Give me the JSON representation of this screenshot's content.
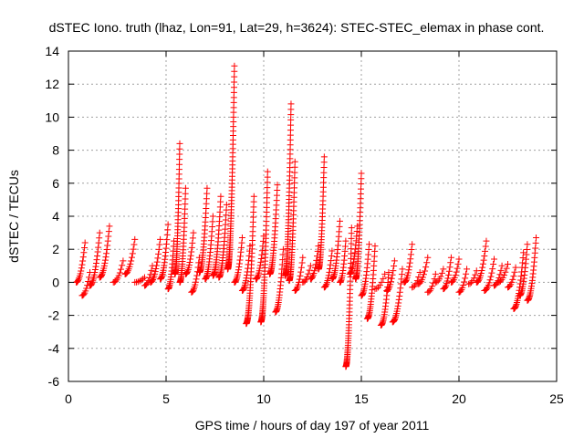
{
  "chart_data": {
    "type": "scatter",
    "title": "dSTEC Iono. truth (lhaz, Lon=91, Lat=29, h=3624): STEC-STEC_elemax in phase cont.",
    "xlabel": "GPS time / hours of day 197 of year 2011",
    "ylabel": "dSTEC  / TECUs",
    "xlim": [
      0,
      25
    ],
    "ylim": [
      -6,
      14
    ],
    "xticks": [
      0,
      5,
      10,
      15,
      20,
      25
    ],
    "yticks": [
      -6,
      -4,
      -2,
      0,
      2,
      4,
      6,
      8,
      10,
      12,
      14
    ],
    "grid": true,
    "marker": "+",
    "marker_color": "#ff0000",
    "arcs": [
      {
        "x_start": 0.4,
        "x_end": 0.85,
        "y_start": 0.0,
        "y_end": 2.4
      },
      {
        "x_start": 0.7,
        "x_end": 1.1,
        "y_start": -0.8,
        "y_end": 0.6
      },
      {
        "x_start": 1.1,
        "x_end": 1.6,
        "y_start": -0.2,
        "y_end": 3.0
      },
      {
        "x_start": 1.6,
        "x_end": 2.1,
        "y_start": 0.3,
        "y_end": 3.4
      },
      {
        "x_start": 2.3,
        "x_end": 2.8,
        "y_start": 0.0,
        "y_end": 1.3
      },
      {
        "x_start": 2.9,
        "x_end": 3.4,
        "y_start": 0.5,
        "y_end": 2.6
      },
      {
        "x_start": 3.4,
        "x_end": 3.9,
        "y_start": 0.0,
        "y_end": 0.3
      },
      {
        "x_start": 3.9,
        "x_end": 4.3,
        "y_start": -0.2,
        "y_end": 1.0
      },
      {
        "x_start": 4.2,
        "x_end": 4.7,
        "y_start": 0.0,
        "y_end": 2.6
      },
      {
        "x_start": 4.7,
        "x_end": 5.1,
        "y_start": 0.2,
        "y_end": 3.5
      },
      {
        "x_start": 5.1,
        "x_end": 5.4,
        "y_start": -0.4,
        "y_end": 2.5
      },
      {
        "x_start": 5.45,
        "x_end": 5.7,
        "y_start": 0.5,
        "y_end": 8.4
      },
      {
        "x_start": 5.7,
        "x_end": 6.0,
        "y_start": 0.0,
        "y_end": 5.7
      },
      {
        "x_start": 6.0,
        "x_end": 6.4,
        "y_start": 0.5,
        "y_end": 3.0
      },
      {
        "x_start": 6.3,
        "x_end": 6.7,
        "y_start": -0.6,
        "y_end": 1.5
      },
      {
        "x_start": 6.7,
        "x_end": 7.1,
        "y_start": 0.6,
        "y_end": 5.7
      },
      {
        "x_start": 7.0,
        "x_end": 7.4,
        "y_start": 0.2,
        "y_end": 4.0
      },
      {
        "x_start": 7.4,
        "x_end": 7.8,
        "y_start": 0.4,
        "y_end": 5.2
      },
      {
        "x_start": 7.7,
        "x_end": 8.1,
        "y_start": 0.3,
        "y_end": 4.7
      },
      {
        "x_start": 8.15,
        "x_end": 8.5,
        "y_start": 0.8,
        "y_end": 13.1
      },
      {
        "x_start": 8.5,
        "x_end": 8.9,
        "y_start": 0.0,
        "y_end": 2.7
      },
      {
        "x_start": 8.9,
        "x_end": 9.3,
        "y_start": -0.5,
        "y_end": 2.2
      },
      {
        "x_start": 9.1,
        "x_end": 9.5,
        "y_start": -2.5,
        "y_end": 5.2
      },
      {
        "x_start": 9.6,
        "x_end": 10.0,
        "y_start": 0.2,
        "y_end": 2.8
      },
      {
        "x_start": 9.85,
        "x_end": 10.2,
        "y_start": -2.4,
        "y_end": 6.7
      },
      {
        "x_start": 10.3,
        "x_end": 10.7,
        "y_start": 0.5,
        "y_end": 5.9
      },
      {
        "x_start": 10.6,
        "x_end": 11.0,
        "y_start": -1.8,
        "y_end": 2.0
      },
      {
        "x_start": 11.1,
        "x_end": 11.4,
        "y_start": 0.4,
        "y_end": 10.8
      },
      {
        "x_start": 11.3,
        "x_end": 11.6,
        "y_start": 0.1,
        "y_end": 7.3
      },
      {
        "x_start": 11.6,
        "x_end": 12.0,
        "y_start": -0.5,
        "y_end": 1.5
      },
      {
        "x_start": 12.0,
        "x_end": 12.4,
        "y_start": 0.0,
        "y_end": 1.0
      },
      {
        "x_start": 12.4,
        "x_end": 12.8,
        "y_start": 0.2,
        "y_end": 2.2
      },
      {
        "x_start": 12.8,
        "x_end": 13.1,
        "y_start": 0.8,
        "y_end": 7.6
      },
      {
        "x_start": 13.1,
        "x_end": 13.5,
        "y_start": -0.3,
        "y_end": 1.9
      },
      {
        "x_start": 13.5,
        "x_end": 13.9,
        "y_start": 0.2,
        "y_end": 3.7
      },
      {
        "x_start": 13.9,
        "x_end": 14.2,
        "y_start": 0.0,
        "y_end": 2.5
      },
      {
        "x_start": 14.2,
        "x_end": 14.5,
        "y_start": -5.1,
        "y_end": 3.3
      },
      {
        "x_start": 14.4,
        "x_end": 14.8,
        "y_start": 0.5,
        "y_end": 3.4
      },
      {
        "x_start": 14.7,
        "x_end": 15.0,
        "y_start": 0.2,
        "y_end": 6.6
      },
      {
        "x_start": 15.0,
        "x_end": 15.4,
        "y_start": -0.8,
        "y_end": 2.3
      },
      {
        "x_start": 15.3,
        "x_end": 15.7,
        "y_start": -2.2,
        "y_end": 2.2
      },
      {
        "x_start": 15.7,
        "x_end": 16.2,
        "y_start": -0.4,
        "y_end": 0.5
      },
      {
        "x_start": 16.0,
        "x_end": 16.4,
        "y_start": -2.6,
        "y_end": 0.6
      },
      {
        "x_start": 16.3,
        "x_end": 16.7,
        "y_start": -0.5,
        "y_end": 1.3
      },
      {
        "x_start": 16.6,
        "x_end": 17.1,
        "y_start": -2.4,
        "y_end": 0.8
      },
      {
        "x_start": 17.2,
        "x_end": 17.6,
        "y_start": 0.0,
        "y_end": 2.3
      },
      {
        "x_start": 17.6,
        "x_end": 18.0,
        "y_start": -0.3,
        "y_end": 0.6
      },
      {
        "x_start": 17.9,
        "x_end": 18.4,
        "y_start": -0.1,
        "y_end": 1.5
      },
      {
        "x_start": 18.4,
        "x_end": 18.8,
        "y_start": -0.6,
        "y_end": 0.5
      },
      {
        "x_start": 18.8,
        "x_end": 19.2,
        "y_start": 0.0,
        "y_end": 0.8
      },
      {
        "x_start": 19.2,
        "x_end": 19.6,
        "y_start": -0.4,
        "y_end": 1.5
      },
      {
        "x_start": 19.6,
        "x_end": 20.0,
        "y_start": 0.0,
        "y_end": 1.4
      },
      {
        "x_start": 20.0,
        "x_end": 20.4,
        "y_start": -0.6,
        "y_end": 0.8
      },
      {
        "x_start": 20.5,
        "x_end": 20.9,
        "y_start": -0.1,
        "y_end": 0.7
      },
      {
        "x_start": 20.9,
        "x_end": 21.4,
        "y_start": 0.0,
        "y_end": 2.5
      },
      {
        "x_start": 21.3,
        "x_end": 21.8,
        "y_start": -0.5,
        "y_end": 1.4
      },
      {
        "x_start": 21.8,
        "x_end": 22.2,
        "y_start": -0.2,
        "y_end": 1.0
      },
      {
        "x_start": 22.0,
        "x_end": 22.5,
        "y_start": 0.0,
        "y_end": 1.1
      },
      {
        "x_start": 22.5,
        "x_end": 22.9,
        "y_start": -0.3,
        "y_end": 0.9
      },
      {
        "x_start": 22.8,
        "x_end": 23.3,
        "y_start": -1.6,
        "y_end": 1.8
      },
      {
        "x_start": 23.1,
        "x_end": 23.5,
        "y_start": -0.8,
        "y_end": 2.3
      },
      {
        "x_start": 23.5,
        "x_end": 23.95,
        "y_start": -1.1,
        "y_end": 2.7
      }
    ]
  },
  "colors": {
    "marker": "#ff0000",
    "grid": "#a0a0a0",
    "axes": "#000000"
  }
}
